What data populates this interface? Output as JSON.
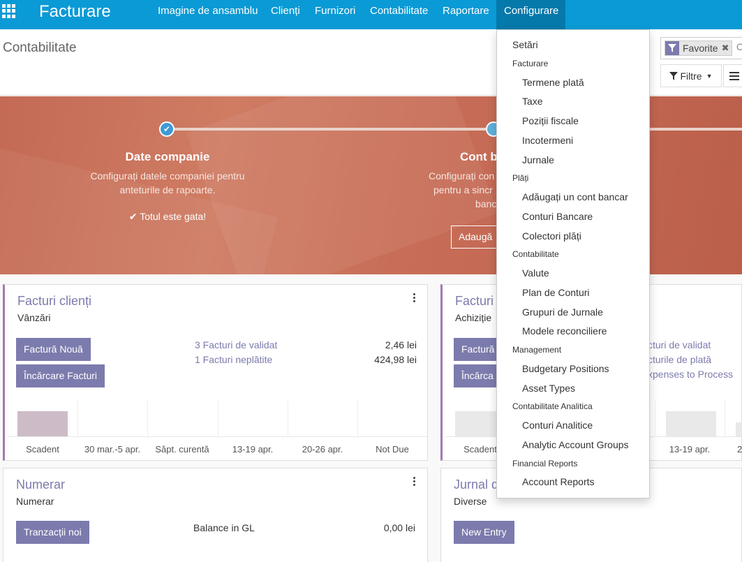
{
  "navbar": {
    "brand": "Facturare",
    "menu": [
      "Imagine de ansamblu",
      "Clienți",
      "Furnizori",
      "Contabilitate",
      "Raportare",
      "Configurare"
    ],
    "active": "Configurare",
    "color": "#0a9ad5"
  },
  "control_panel": {
    "title": "Contabilitate",
    "search_facet": "Favorite",
    "search_rest": "C",
    "filter_label": "Filtre"
  },
  "banner": {
    "step1": {
      "title": "Date companie",
      "desc1": "Configurați datele companiei pentru",
      "desc2": "anteturile de rapoarte.",
      "done": "Totul este gata!"
    },
    "step2": {
      "title": "Cont b",
      "desc1": "Configurați con",
      "desc2": "pentru a sincr",
      "desc3": "banc",
      "button": "Adaugă"
    }
  },
  "cards": {
    "sales": {
      "title": "Facturi clienți",
      "subtitle": "Vânzări",
      "btn_new": "Factură Nouă",
      "btn_upload": "Încărcare Facturi",
      "link1": "3 Facturi de validat",
      "amount1": "2,46 lei",
      "link2": "1 Facturi neplătite",
      "amount2": "424,98 lei",
      "axis": [
        "Scadent",
        "30 mar.-5 apr.",
        "Săpt. curentă",
        "13-19 apr.",
        "20-26 apr.",
        "Not Due"
      ]
    },
    "purchase": {
      "title": "Facturi f",
      "subtitle": "Achiziție",
      "btn_new": "Factură",
      "btn_upload": "Încărca",
      "link1": "cturi de validat",
      "link2": "cturile de plată",
      "link3": "xpenses to Process",
      "axis": [
        "Scadent",
        "13-19 apr.",
        "2"
      ]
    },
    "cash": {
      "title": "Numerar",
      "subtitle": "Numerar",
      "btn_new": "Tranzacții noi",
      "balance_label": "Balance in GL",
      "balance": "0,00 lei"
    },
    "misc": {
      "title": "Jurnal d",
      "subtitle": "Diverse",
      "btn_new": "New Entry"
    }
  },
  "dropdown": {
    "settings": "Setări",
    "sections": [
      {
        "header": "Facturare",
        "items": [
          "Termene plată",
          "Taxe",
          "Poziții fiscale",
          "Incotermeni",
          "Jurnale"
        ]
      },
      {
        "header": "Plăți",
        "items": [
          "Adăugați un cont bancar",
          "Conturi Bancare",
          "Colectori plăți"
        ]
      },
      {
        "header": "Contabilitate",
        "items": [
          "Valute",
          "Plan de Conturi",
          "Grupuri de Jurnale",
          "Modele reconciliere"
        ]
      },
      {
        "header": "Management",
        "items": [
          "Budgetary Positions",
          "Asset Types"
        ]
      },
      {
        "header": "Contabilitate Analitica",
        "items": [
          "Conturi Analitice",
          "Analytic Account Groups"
        ]
      },
      {
        "header": "Financial Reports",
        "items": [
          "Account Reports"
        ]
      }
    ]
  }
}
